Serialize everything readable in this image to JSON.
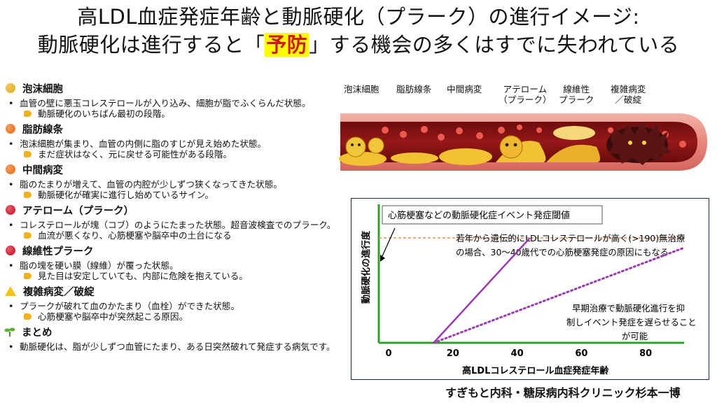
{
  "header": {
    "title_line1": "高LDL血症発症年齢と動脈硬化（プラーク）の進行イメージ:",
    "title_line2_a": "動脈硬化は進行すると「",
    "title_line2_b": "予防",
    "title_line2_c": "」する機会の多くはすでに失われている"
  },
  "sections": [
    {
      "title": "泡沫細胞",
      "color": "#e9b531",
      "bullet": "血管の壁に悪玉コレステロールが入り込み、細胞が脂でふくらんだ状態。",
      "note": "動脈硬化のいちばん最初の段階。"
    },
    {
      "title": "脂肪線条",
      "color": "#ef7b2c",
      "bullet": "泡沫細胞が集まり、血管の内側に脂のすじが見え始めた状態。",
      "note": "まだ症状はなく、元に戻せる可能性がある段階。"
    },
    {
      "title": "中間病変",
      "color": "#ef7b2c",
      "bullet": "脂のたまりが増えて、血管の内腔が少しずつ狭くなってきた状態。",
      "note": "動脈硬化が確実に進行し始めているサイン。"
    },
    {
      "title": "アテローム（プラーク）",
      "color": "#d8263a",
      "bullet": "コレステロールが塊（コブ）のようにたまった状態。超音波検査でのプラーク。",
      "note": "血流が悪くなり、心筋梗塞や脳卒中の土台になる"
    },
    {
      "title": "線維性プラーク",
      "color": "#d8263a",
      "bullet": "脂の塊を硬い膜（線維）が覆った状態。",
      "note": "見た目は安定していても、内部に危険を抱えている。"
    },
    {
      "title": "複雑病変／破綻",
      "color": "warn",
      "bullet": "プラークが破れて血のかたまり（血栓）ができた状態。",
      "note": "心筋梗塞や脳卒中が突然起こる原因。"
    },
    {
      "title": "まとめ",
      "color": "sprout",
      "bullet": "動脈硬化は、脂が少しずつ血管にたまり、ある日突然破れて発症する病気です。",
      "note": ""
    }
  ],
  "stages": {
    "s1": "泡沫細胞",
    "s2": "脂肪線条",
    "s3": "中間病変",
    "s4a": "アテローム",
    "s4b": "（プラーク）",
    "s5a": "線維性",
    "s5b": "プラーク",
    "s6a": "複雑病変",
    "s6b": "／破綻"
  },
  "chart_data": {
    "type": "line",
    "xlabel": "高LDLコレステロール血症発症年齢",
    "ylabel": "動脈硬化の進行度",
    "xlim": [
      0,
      95
    ],
    "ylim": [
      0,
      100
    ],
    "xticks": [
      0,
      20,
      40,
      60,
      80
    ],
    "threshold": {
      "label": "心筋梗塞などの動脈硬化症イベント発症閾値",
      "y": 75,
      "color": "#ee8a4a"
    },
    "series": [
      {
        "x": [
          14,
          44
        ],
        "y": [
          0,
          75
        ],
        "color": "#9a3ab0",
        "style": "solid"
      },
      {
        "x": [
          14,
          92
        ],
        "y": [
          0,
          68
        ],
        "color": "#9a3ab0",
        "style": "dotted"
      }
    ],
    "annotations": [
      {
        "line1": "若年から遺伝的にLDLコレステロールが高く(>190)無治療",
        "line2": "の場合、30〜40歳代での心筋梗塞発症の原因にもなる"
      },
      {
        "line1": "早期治療で動脈硬化進行を抑",
        "line2": "制しイベント発症を遅らせること",
        "line3": "が可能"
      }
    ],
    "axis_color": "#33a02c"
  },
  "footer": {
    "credit": "すぎもと内科・糖尿病内科クリニック杉本一博"
  }
}
